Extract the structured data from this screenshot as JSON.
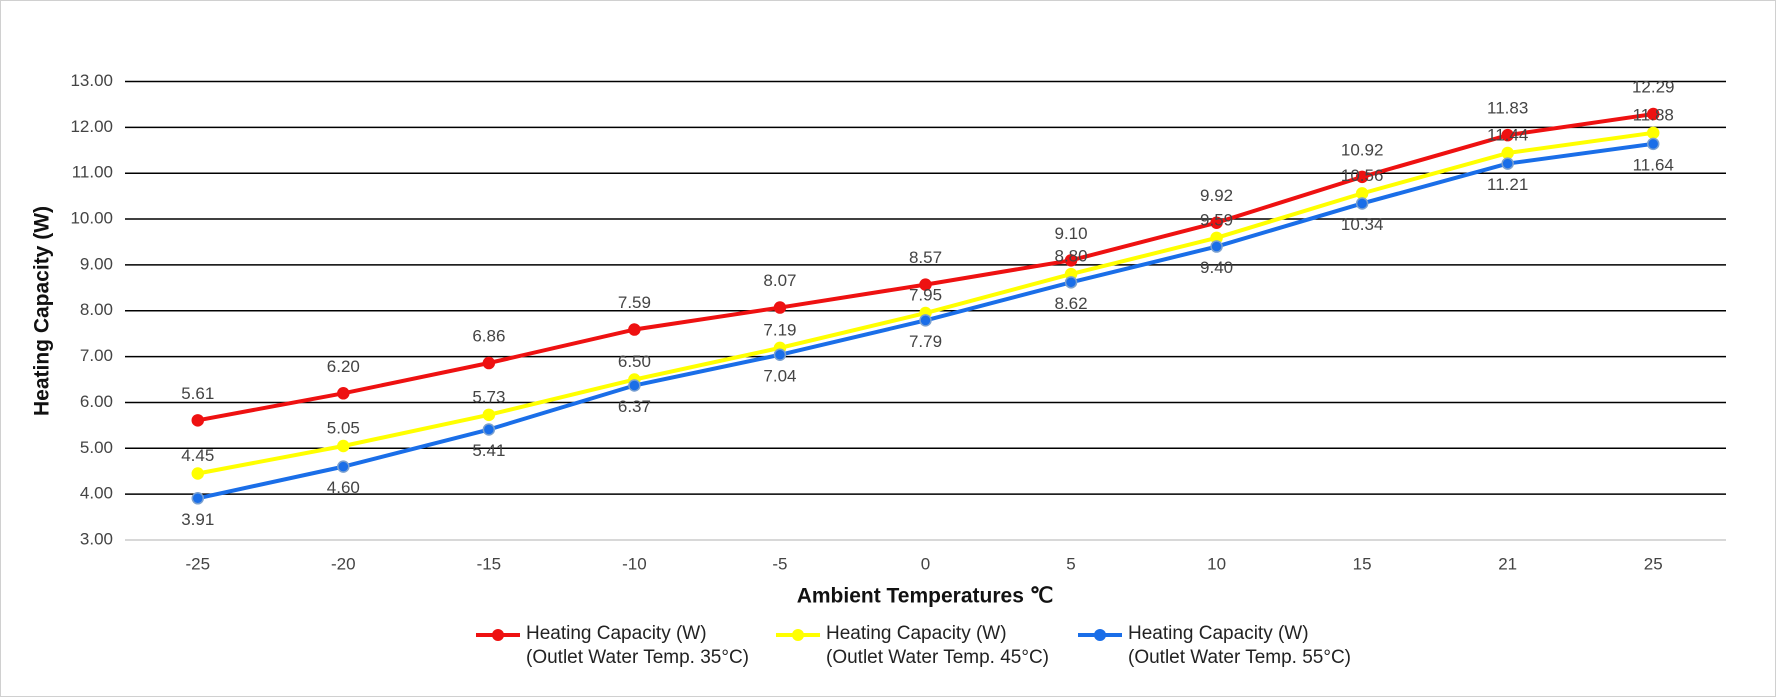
{
  "chart_data": {
    "type": "line",
    "x_label": "Ambient Temperatures ℃",
    "y_label": "Heating Capacity (W)",
    "categories": [
      "-25",
      "-20",
      "-15",
      "-10",
      "-5",
      "0",
      "5",
      "10",
      "15",
      "21",
      "25"
    ],
    "ylim": [
      3,
      13
    ],
    "yticks": [
      {
        "value": 3,
        "label": "3.00"
      },
      {
        "value": 4,
        "label": "4.00"
      },
      {
        "value": 5,
        "label": "5.00"
      },
      {
        "value": 6,
        "label": "6.00"
      },
      {
        "value": 7,
        "label": "7.00"
      },
      {
        "value": 8,
        "label": "8.00"
      },
      {
        "value": 9,
        "label": "9.00"
      },
      {
        "value": 10,
        "label": "10.00"
      },
      {
        "value": 11,
        "label": "11.00"
      },
      {
        "value": 12,
        "label": "12.00"
      },
      {
        "value": 13,
        "label": "13.00"
      }
    ],
    "grid": true,
    "legend": "bottom",
    "series": [
      {
        "name": "Heating Capacity (W)\n(Outlet Water Temp. 35°C)",
        "color": "#ee1111",
        "values": [
          5.61,
          6.2,
          6.86,
          7.59,
          8.07,
          8.57,
          9.1,
          9.92,
          10.92,
          11.83,
          12.29
        ],
        "value_labels": [
          "5.61",
          "6.20",
          "6.86",
          "7.59",
          "8.07",
          "8.57",
          "9.10",
          "9.92",
          "10.92",
          "11.83",
          "12.29"
        ]
      },
      {
        "name": "Heating Capacity (W)\n(Outlet Water Temp. 45°C)",
        "color": "#ffff00",
        "values": [
          4.45,
          5.05,
          5.73,
          6.5,
          7.19,
          7.95,
          8.8,
          9.59,
          10.56,
          11.44,
          11.88
        ],
        "value_labels": [
          "4.45",
          "5.05",
          "5.73",
          "6.50",
          "7.19",
          "7.95",
          "8.80",
          "9.59",
          "10.56",
          "11.44",
          "11.88"
        ]
      },
      {
        "name": "Heating Capacity (W)\n(Outlet Water Temp. 55°C)",
        "color": "#1a6ee8",
        "values": [
          3.91,
          4.6,
          5.41,
          6.37,
          7.04,
          7.79,
          8.62,
          9.4,
          10.34,
          11.21,
          11.64
        ],
        "value_labels": [
          "3.91",
          "4.60",
          "5.41",
          "6.37",
          "7.04",
          "7.79",
          "8.62",
          "9.40",
          "10.34",
          "11.21",
          "11.64"
        ]
      }
    ]
  }
}
